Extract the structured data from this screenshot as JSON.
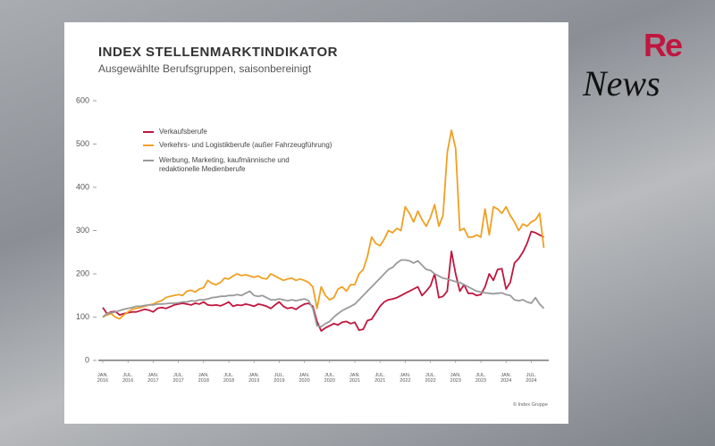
{
  "chart_data": {
    "type": "line",
    "title": "INDEX STELLENMARKTINDIKATOR",
    "subtitle": "Ausgewählte Berufsgruppen, saisonbereinigt",
    "source": "© Index Gruppe",
    "categories": [
      "JAN. 2016",
      null,
      null,
      null,
      null,
      null,
      "JUL. 2016",
      null,
      null,
      null,
      null,
      null,
      "JAN. 2017",
      null,
      null,
      null,
      null,
      null,
      "JUL. 2017",
      null,
      null,
      null,
      null,
      null,
      "JAN. 2018",
      null,
      null,
      null,
      null,
      null,
      "JUL. 2018",
      null,
      null,
      null,
      null,
      null,
      "JAN. 2019",
      null,
      null,
      null,
      null,
      null,
      "JUL. 2019",
      null,
      null,
      null,
      null,
      null,
      "JAN. 2020",
      null,
      null,
      null,
      null,
      null,
      "JUL. 2020",
      null,
      null,
      null,
      null,
      null,
      "JAN. 2021",
      null,
      null,
      null,
      null,
      null,
      "JUL. 2021",
      null,
      null,
      null,
      null,
      null,
      "JAN. 2022",
      null,
      null,
      null,
      null,
      null,
      "JUL. 2022",
      null,
      null,
      null,
      null,
      null,
      "JAN. 2023",
      null,
      null,
      null,
      null,
      null,
      "JUL. 2023",
      null,
      null,
      null,
      null,
      null,
      "JAN. 2024",
      null,
      null,
      null,
      null,
      null,
      "JUL. 2024",
      null,
      null,
      null
    ],
    "series": [
      {
        "name": "Verkaufsberufe",
        "color": "#c0163f",
        "values": [
          122,
          108,
          112,
          113,
          105,
          108,
          110,
          112,
          112,
          115,
          118,
          116,
          112,
          120,
          122,
          120,
          124,
          128,
          130,
          132,
          130,
          128,
          132,
          130,
          135,
          128,
          127,
          128,
          126,
          130,
          135,
          125,
          128,
          127,
          130,
          128,
          125,
          130,
          128,
          125,
          120,
          128,
          135,
          125,
          120,
          122,
          118,
          125,
          130,
          132,
          125,
          90,
          68,
          75,
          80,
          85,
          82,
          88,
          90,
          85,
          88,
          70,
          72,
          92,
          95,
          110,
          125,
          135,
          140,
          142,
          145,
          150,
          155,
          160,
          165,
          170,
          150,
          160,
          172,
          200,
          145,
          148,
          160,
          252,
          200,
          160,
          175,
          155,
          155,
          150,
          152,
          170,
          200,
          185,
          210,
          212,
          165,
          180,
          225,
          235,
          250,
          270,
          298,
          295,
          290,
          285
        ]
      },
      {
        "name": "Verkehrs- und Logistikberufe (außer Fahrzeugführung)",
        "color": "#f0a022",
        "values": [
          100,
          105,
          108,
          100,
          96,
          105,
          112,
          118,
          120,
          122,
          125,
          128,
          130,
          135,
          138,
          145,
          148,
          150,
          152,
          150,
          160,
          162,
          158,
          165,
          168,
          185,
          178,
          175,
          180,
          190,
          188,
          195,
          200,
          196,
          198,
          195,
          192,
          195,
          190,
          188,
          200,
          195,
          190,
          185,
          188,
          190,
          185,
          188,
          185,
          180,
          170,
          120,
          170,
          150,
          140,
          145,
          165,
          170,
          160,
          175,
          175,
          200,
          210,
          240,
          285,
          270,
          265,
          280,
          300,
          295,
          305,
          300,
          355,
          340,
          320,
          345,
          325,
          310,
          330,
          360,
          310,
          335,
          480,
          532,
          490,
          300,
          305,
          285,
          285,
          290,
          285,
          350,
          290,
          355,
          350,
          340,
          355,
          335,
          320,
          300,
          315,
          310,
          320,
          325,
          340,
          260
        ]
      },
      {
        "name": "Werbung, Marketing, kaufmännische und redaktionelle Medienberufe",
        "color": "#9a9a9a",
        "values": [
          100,
          108,
          110,
          112,
          115,
          118,
          120,
          122,
          125,
          125,
          127,
          128,
          128,
          130,
          130,
          131,
          132,
          132,
          133,
          135,
          135,
          138,
          137,
          140,
          140,
          142,
          145,
          146,
          148,
          148,
          150,
          150,
          152,
          150,
          155,
          160,
          150,
          148,
          150,
          145,
          140,
          140,
          142,
          140,
          138,
          140,
          138,
          140,
          142,
          138,
          120,
          80,
          78,
          85,
          90,
          100,
          108,
          115,
          120,
          125,
          130,
          140,
          150,
          160,
          170,
          180,
          190,
          200,
          210,
          215,
          225,
          232,
          232,
          230,
          225,
          230,
          220,
          210,
          208,
          200,
          195,
          190,
          188,
          185,
          182,
          180,
          175,
          170,
          165,
          160,
          158,
          156,
          155,
          154,
          155,
          156,
          152,
          150,
          140,
          138,
          140,
          135,
          132,
          145,
          130,
          120
        ]
      }
    ],
    "ylim": [
      0,
      600
    ],
    "yticks": [
      0,
      100,
      200,
      300,
      400,
      500,
      600
    ],
    "grid": false
  },
  "logo": {
    "re": "Re",
    "news": "News"
  }
}
